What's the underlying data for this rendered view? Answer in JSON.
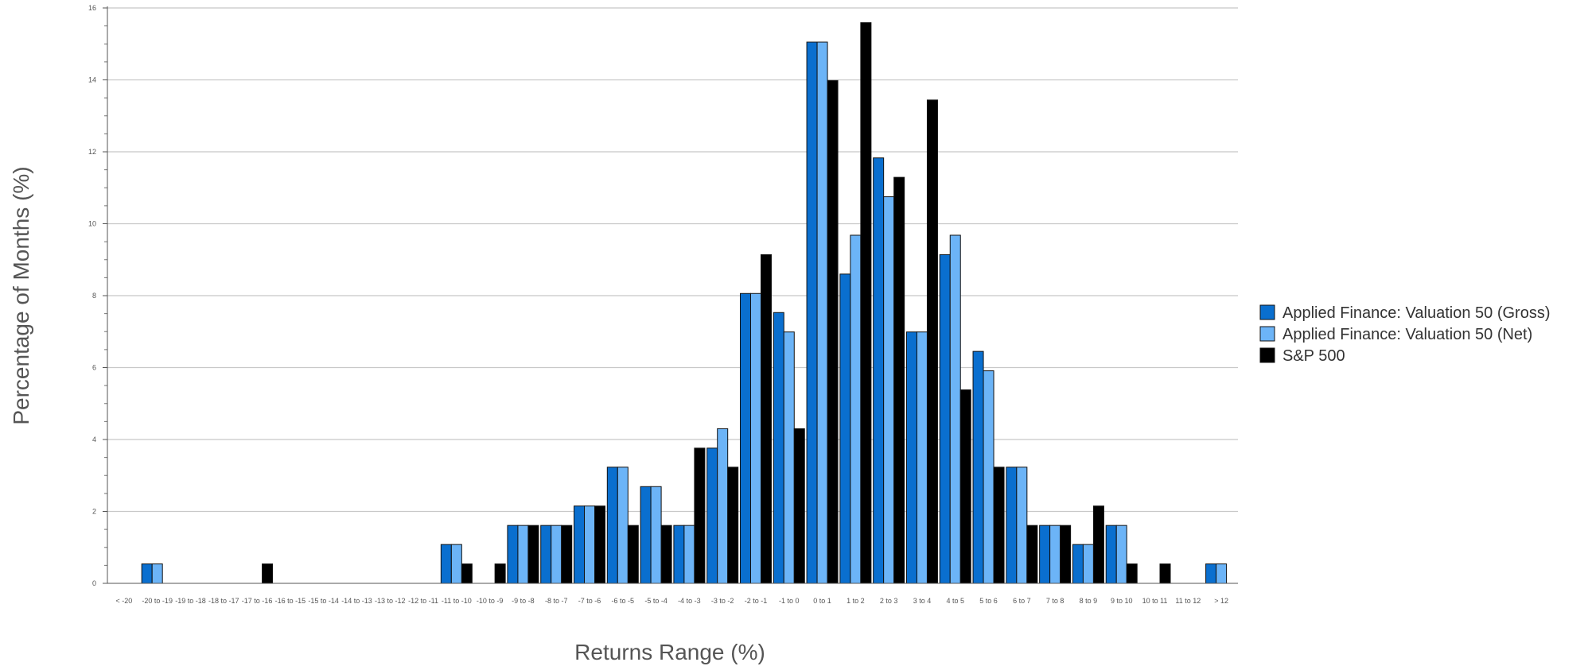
{
  "chart_data": {
    "type": "bar",
    "xlabel": "Returns Range (%)",
    "ylabel": "Percentage of Months (%)",
    "ylim": [
      0,
      16
    ],
    "yticks": [
      0,
      2,
      4,
      6,
      8,
      10,
      12,
      14,
      16
    ],
    "grid": true,
    "legend_position": "right",
    "categories": [
      "< -20",
      "-20 to -19",
      "-19 to -18",
      "-18 to -17",
      "-17 to -16",
      "-16 to -15",
      "-15 to -14",
      "-14 to -13",
      "-13 to -12",
      "-12 to -11",
      "-11 to -10",
      "-10 to -9",
      "-9 to -8",
      "-8 to -7",
      "-7 to -6",
      "-6 to -5",
      "-5 to -4",
      "-4 to -3",
      "-3 to -2",
      "-2 to -1",
      "-1 to 0",
      "0 to 1",
      "1 to 2",
      "2 to 3",
      "3 to 4",
      "4 to 5",
      "5 to 6",
      "6 to 7",
      "7 to 8",
      "8 to 9",
      "9 to 10",
      "10 to 11",
      "11 to 12",
      "> 12"
    ],
    "series": [
      {
        "name": "Applied Finance: Valuation 50 (Gross)",
        "color": "#0a6fcf",
        "values": [
          0,
          0.54,
          0,
          0,
          0,
          0,
          0,
          0,
          0,
          0,
          1.08,
          0,
          1.61,
          1.61,
          2.15,
          3.23,
          2.69,
          1.61,
          3.76,
          8.06,
          7.53,
          15.05,
          8.6,
          11.83,
          6.99,
          9.14,
          6.45,
          3.23,
          1.61,
          1.08,
          1.61,
          0,
          0,
          0.54
        ]
      },
      {
        "name": "Applied Finance: Valuation 50 (Net)",
        "color": "#6cb4f7",
        "values": [
          0,
          0.54,
          0,
          0,
          0,
          0,
          0,
          0,
          0,
          0,
          1.08,
          0,
          1.61,
          1.61,
          2.15,
          3.23,
          2.69,
          1.61,
          4.3,
          8.06,
          6.99,
          15.05,
          9.68,
          10.75,
          6.99,
          9.68,
          5.91,
          3.23,
          1.61,
          1.08,
          1.61,
          0,
          0,
          0.54
        ]
      },
      {
        "name": "S&P 500",
        "color": "#000000",
        "values": [
          0,
          0,
          0,
          0,
          0.54,
          0,
          0,
          0,
          0,
          0,
          0.54,
          0.54,
          1.61,
          1.61,
          2.15,
          1.61,
          1.61,
          3.76,
          3.23,
          9.14,
          4.3,
          13.98,
          15.59,
          11.29,
          13.44,
          5.38,
          3.23,
          1.61,
          1.61,
          2.15,
          0.54,
          0.54,
          0,
          0
        ]
      }
    ]
  }
}
